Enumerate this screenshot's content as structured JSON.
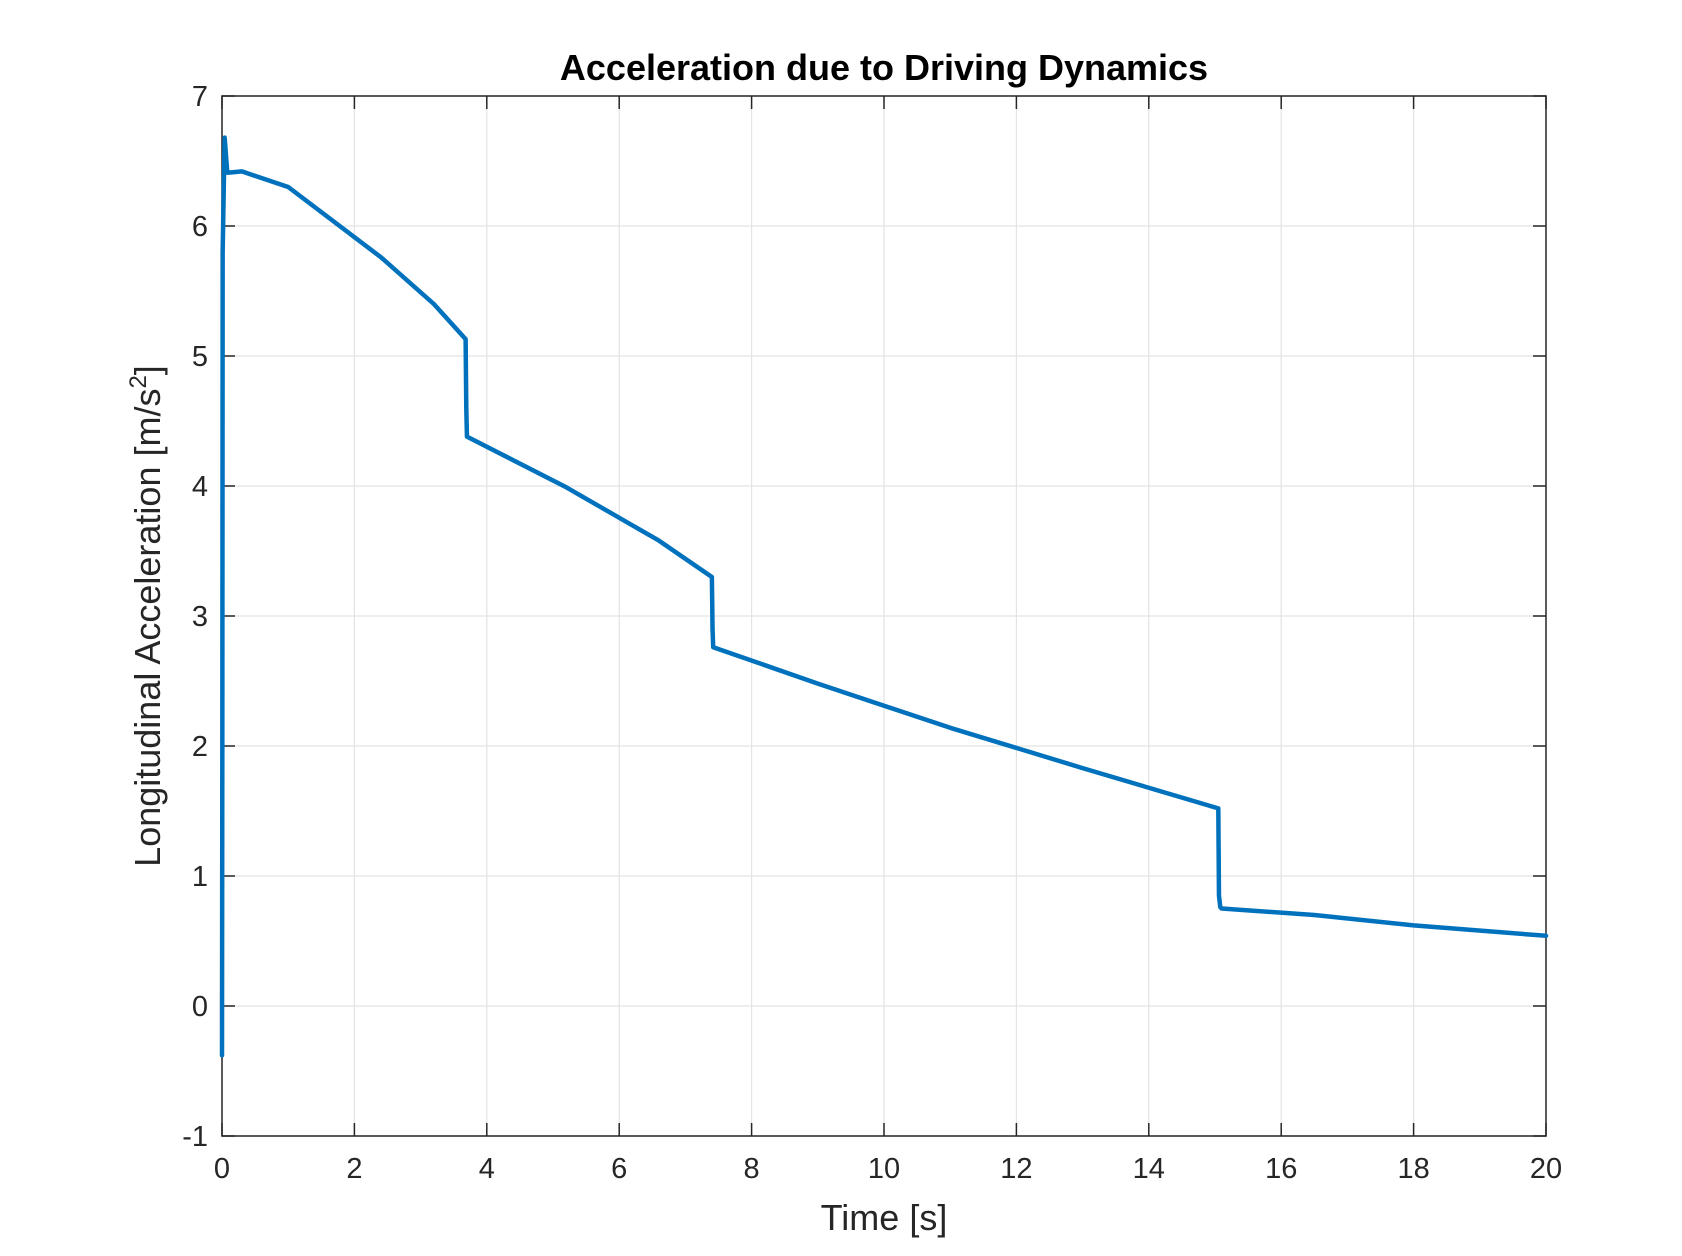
{
  "chart_data": {
    "type": "line",
    "title": "Acceleration due to Driving Dynamics",
    "xlabel": "Time [s]",
    "ylabel": "Longitudinal Acceleration [m/s",
    "ylabel_sup": "2",
    "ylabel_suffix": "]",
    "xlim": [
      0,
      20
    ],
    "ylim": [
      -1,
      7
    ],
    "x_ticks": [
      0,
      2,
      4,
      6,
      8,
      10,
      12,
      14,
      16,
      18,
      20
    ],
    "x_tick_labels": [
      "0",
      "2",
      "4",
      "6",
      "8",
      "10",
      "12",
      "14",
      "16",
      "18",
      "20"
    ],
    "y_ticks": [
      -1,
      0,
      1,
      2,
      3,
      4,
      5,
      6,
      7
    ],
    "y_tick_labels": [
      "-1",
      "0",
      "1",
      "2",
      "3",
      "4",
      "5",
      "6",
      "7"
    ],
    "grid": true,
    "colors": {
      "line": "#0072BD",
      "grid": "#e3e3e3",
      "axes": "#262626"
    },
    "series": [
      {
        "x": [
          0.0,
          0.005,
          0.01,
          0.04,
          0.08,
          0.3,
          1.0,
          2.4,
          3.2,
          3.68,
          3.69,
          3.7,
          5.2,
          6.6,
          7.4,
          7.41,
          7.42,
          9.0,
          11.0,
          13.0,
          15.05,
          15.06,
          15.08,
          15.1,
          16.5,
          18.0,
          20.0
        ],
        "y": [
          -0.38,
          2.0,
          5.8,
          6.68,
          6.41,
          6.42,
          6.3,
          5.76,
          5.4,
          5.13,
          4.6,
          4.38,
          3.99,
          3.58,
          3.3,
          2.9,
          2.76,
          2.48,
          2.14,
          1.83,
          1.52,
          0.85,
          0.76,
          0.75,
          0.7,
          0.62,
          0.54
        ]
      }
    ]
  }
}
